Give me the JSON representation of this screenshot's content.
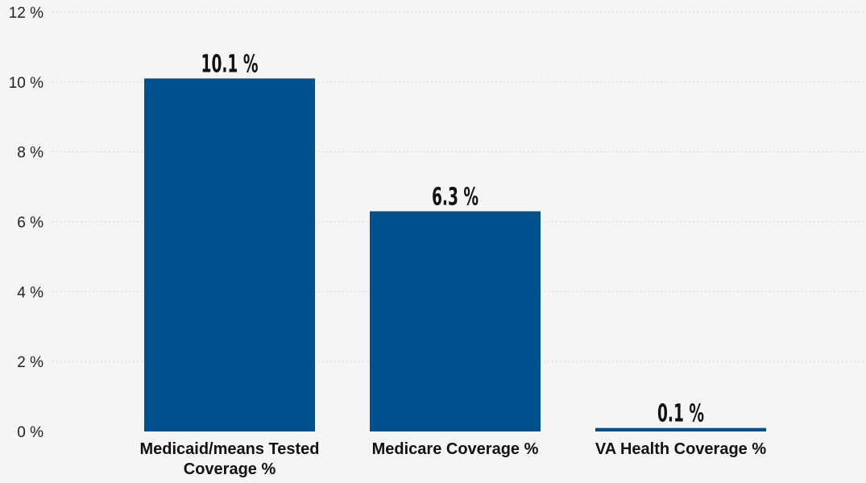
{
  "chart_data": {
    "type": "bar",
    "categories": [
      [
        "Medicaid/means Tested",
        "Coverage %"
      ],
      [
        "Medicare Coverage %"
      ],
      [
        "VA Health Coverage %"
      ]
    ],
    "values": [
      10.1,
      6.3,
      0.1
    ],
    "data_labels": [
      "10.1 %",
      "6.3 %",
      "0.1 %"
    ],
    "y_ticks": [
      0,
      2,
      4,
      6,
      8,
      10,
      12
    ],
    "y_tick_suffix": " %",
    "ylim": [
      0,
      12
    ],
    "grid": true,
    "legend": "none",
    "bar_color": "#00508f",
    "title": "",
    "xlabel": "",
    "ylabel": ""
  }
}
